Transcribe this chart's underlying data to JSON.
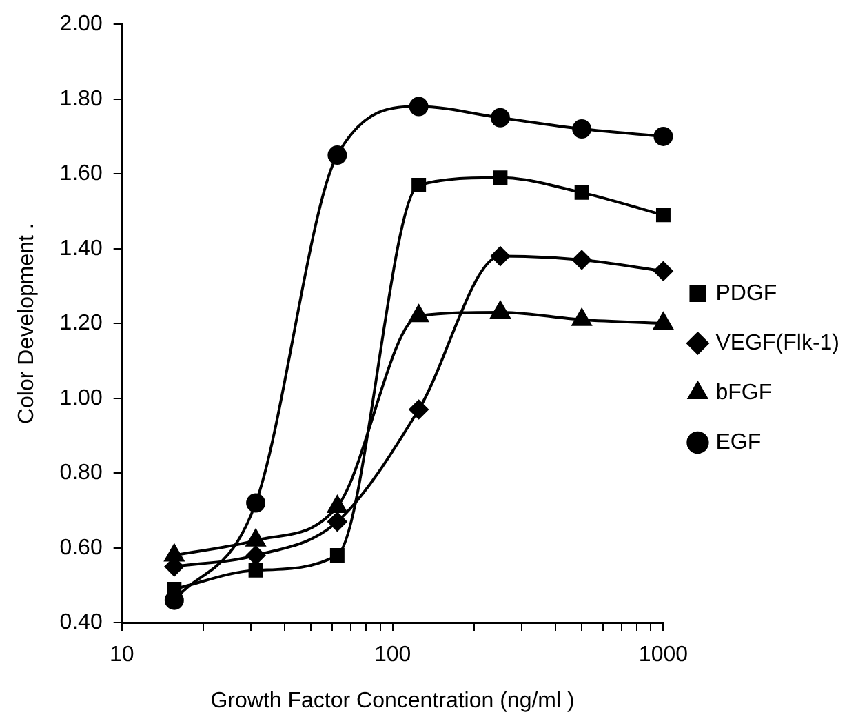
{
  "chart_data": {
    "type": "line",
    "xlabel": "Growth Factor Concentration (ng/ml )",
    "ylabel": "Color Development .",
    "x": [
      15.625,
      31.25,
      62.5,
      125,
      250,
      500,
      1000
    ],
    "series": [
      {
        "name": "PDGF",
        "color": "#000000",
        "marker": "square",
        "values": [
          0.49,
          0.54,
          0.58,
          1.57,
          1.59,
          1.55,
          1.49
        ]
      },
      {
        "name": "VEGF(Flk-1)",
        "color": "#000000",
        "marker": "diamond",
        "values": [
          0.55,
          0.58,
          0.67,
          0.97,
          1.38,
          1.37,
          1.34
        ]
      },
      {
        "name": "bFGF",
        "color": "#000000",
        "marker": "triangle",
        "values": [
          0.58,
          0.62,
          0.71,
          1.22,
          1.23,
          1.21,
          1.2
        ]
      },
      {
        "name": "EGF",
        "color": "#000000",
        "marker": "circle",
        "values": [
          0.46,
          0.72,
          1.65,
          1.78,
          1.75,
          1.72,
          1.7
        ]
      }
    ],
    "log": "x",
    "xlim": [
      10,
      1000
    ],
    "xticks": [
      10,
      {
        "value": 20,
        "label": null
      },
      {
        "value": 30,
        "label": null
      },
      {
        "value": 40,
        "label": null
      },
      {
        "value": 50,
        "label": null
      },
      {
        "value": 60,
        "label": null
      },
      {
        "value": 70,
        "label": null
      },
      {
        "value": 80,
        "label": null
      },
      {
        "value": 90,
        "label": null
      },
      100,
      {
        "value": 200,
        "label": null
      },
      {
        "value": 300,
        "label": null
      },
      {
        "value": 400,
        "label": null
      },
      {
        "value": 500,
        "label": null
      },
      {
        "value": 600,
        "label": null
      },
      {
        "value": 700,
        "label": null
      },
      {
        "value": 800,
        "label": null
      },
      {
        "value": 900,
        "label": null
      },
      1000
    ],
    "ylim": [
      0.4,
      2.0
    ],
    "yticks": [
      {
        "value": 0.4,
        "label": "0.40"
      },
      {
        "value": 0.6,
        "label": "0.60"
      },
      {
        "value": 0.8,
        "label": "0.80"
      },
      {
        "value": 1.0,
        "label": "1.00"
      },
      {
        "value": 1.2,
        "label": "1.20"
      },
      {
        "value": 1.4,
        "label": "1.40"
      },
      {
        "value": 1.6,
        "label": "1.60"
      },
      {
        "value": 1.8,
        "label": "1.80"
      },
      {
        "value": 2.0,
        "label": "2.00"
      }
    ],
    "grid": false,
    "legend": "right",
    "line_style": "solid"
  }
}
